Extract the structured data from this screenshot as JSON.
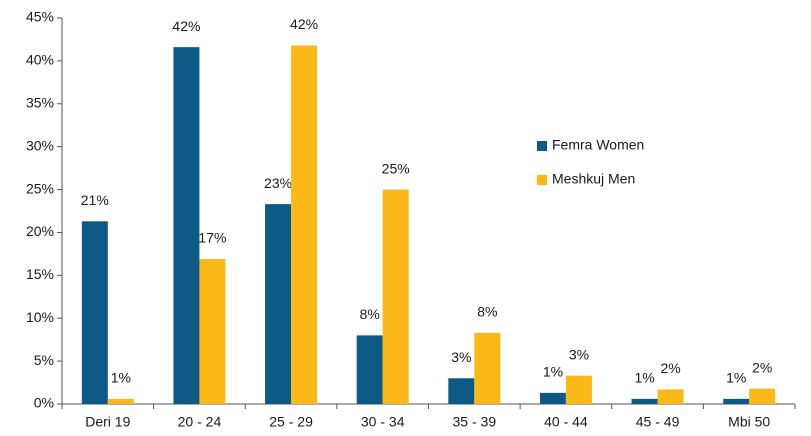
{
  "chart_data": {
    "type": "bar",
    "categories": [
      "Deri 19",
      "20 - 24",
      "25 - 29",
      "30 - 34",
      "35 - 39",
      "40 - 44",
      "45 - 49",
      "Mbi 50"
    ],
    "series": [
      {
        "name": "Femra Women",
        "color": "#0c5a85",
        "values": [
          21.3,
          41.6,
          23.3,
          8.0,
          3.0,
          1.3,
          0.6,
          0.6
        ],
        "value_labels": [
          "21%",
          "42%",
          "23%",
          "8%",
          "3%",
          "1%",
          "1%",
          "1%"
        ]
      },
      {
        "name": "Meshkuj Men",
        "color": "#fbb817",
        "values": [
          0.6,
          16.9,
          41.8,
          25.0,
          8.3,
          3.3,
          1.7,
          1.8
        ],
        "value_labels": [
          "1%",
          "17%",
          "42%",
          "25%",
          "8%",
          "3%",
          "2%",
          "2%"
        ]
      }
    ],
    "ylim": [
      0,
      45
    ],
    "yticks": [
      {
        "value": 0,
        "label": "0%"
      },
      {
        "value": 5,
        "label": "5%"
      },
      {
        "value": 10,
        "label": "10%"
      },
      {
        "value": 15,
        "label": "15%"
      },
      {
        "value": 20,
        "label": "20%"
      },
      {
        "value": 25,
        "label": "25%"
      },
      {
        "value": 30,
        "label": "30%"
      },
      {
        "value": 35,
        "label": "35%"
      },
      {
        "value": 40,
        "label": "40%"
      },
      {
        "value": 45,
        "label": "45%"
      }
    ],
    "grid": false,
    "legend": "right"
  }
}
